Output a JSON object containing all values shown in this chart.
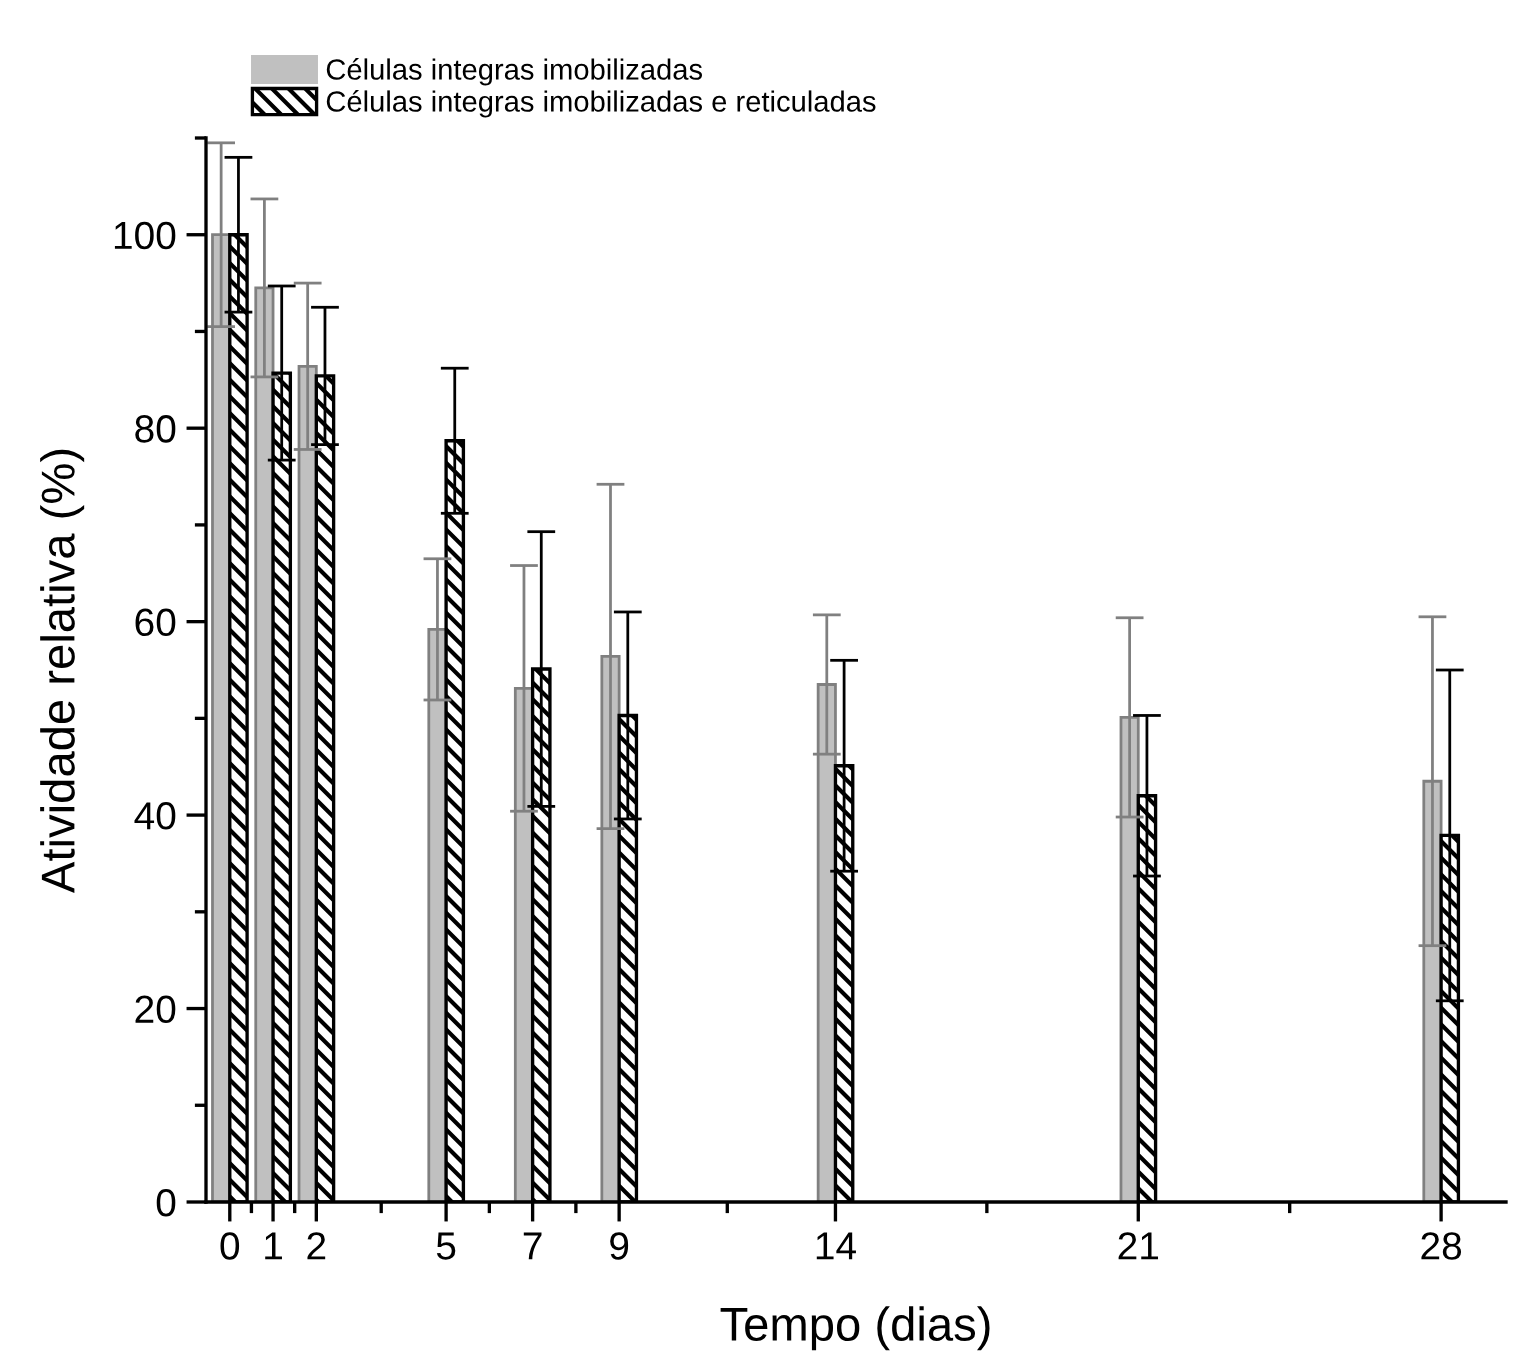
{
  "chart_data": {
    "type": "bar",
    "xlabel": "Tempo (dias)",
    "ylabel": "Atividade relativa (%)",
    "x": [
      0,
      1,
      2,
      5,
      7,
      9,
      14,
      21,
      28
    ],
    "series": [
      {
        "name": "Células integras imobilizadas",
        "color": "#c0c0c0",
        "values": [
          100,
          94.5,
          86.4,
          59.2,
          53.1,
          56.4,
          53.5,
          50.1,
          43.5
        ],
        "errors": [
          9.5,
          9.2,
          8.6,
          7.3,
          12.7,
          17.8,
          7.2,
          10.3,
          17
        ]
      },
      {
        "name": "Células integras imobilizadas e reticuladas",
        "color": "#000000",
        "values": [
          100,
          85.7,
          85.4,
          78.7,
          55.1,
          50.3,
          45.1,
          42,
          37.9
        ],
        "errors": [
          8,
          9,
          7.1,
          7.5,
          14.2,
          10.7,
          10.9,
          8.3,
          17.1
        ]
      }
    ],
    "xlim": [
      -0.55,
      29.5
    ],
    "xticks": [
      0,
      1,
      2,
      5,
      7,
      9,
      14,
      21,
      28,
      {
        "value": 0.5,
        "label": null
      },
      {
        "value": 1.5,
        "label": null
      },
      {
        "value": 3.5,
        "label": null
      },
      {
        "value": 6,
        "label": null
      },
      {
        "value": 8,
        "label": null
      },
      {
        "value": 11.5,
        "label": null
      },
      {
        "value": 17.5,
        "label": null
      },
      {
        "value": 24.5,
        "label": null
      }
    ],
    "ylim": [
      0,
      110
    ],
    "yticks": [
      0,
      20,
      40,
      60,
      80,
      100,
      {
        "value": 10,
        "label": null
      },
      {
        "value": 30,
        "label": null
      },
      {
        "value": 50,
        "label": null
      },
      {
        "value": 70,
        "label": null
      },
      {
        "value": 90,
        "label": null
      },
      {
        "value": 110,
        "label": null
      }
    ],
    "grid": false,
    "legend": "top left"
  }
}
